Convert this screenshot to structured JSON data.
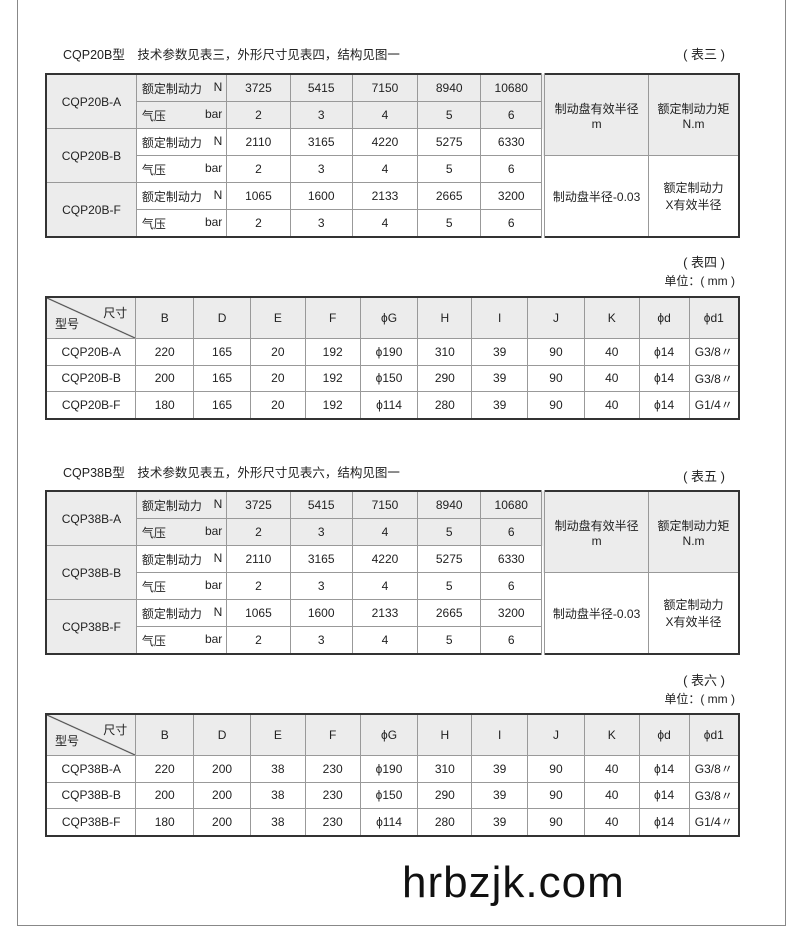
{
  "sections": [
    {
      "title": "CQP20B型　技术参数见表三，外形尺寸见表四，结构见图一",
      "spec": {
        "tag": "( 表三 )",
        "models": [
          "CQP20B-A",
          "CQP20B-B",
          "CQP20B-F"
        ],
        "force_label": "额定制动力",
        "force_unit": "N",
        "pressure_label": "气压",
        "pressure_unit": "bar",
        "forces": [
          [
            "3725",
            "5415",
            "7150",
            "8940",
            "10680"
          ],
          [
            "2110",
            "3165",
            "4220",
            "5275",
            "6330"
          ],
          [
            "1065",
            "1600",
            "2133",
            "2665",
            "3200"
          ]
        ],
        "pressures": [
          "2",
          "3",
          "4",
          "5",
          "6"
        ],
        "radius_header": "制动盘有效半径",
        "radius_unit": "m",
        "torque_header": "额定制动力矩",
        "torque_unit": "N.m",
        "radius_value": "制动盘半径-0.03",
        "torque_value_1": "额定制动力",
        "torque_value_2": "X有效半径"
      },
      "dim": {
        "tag": "( 表四 )",
        "unit": "单位：( mm )",
        "corner_top": "尺寸",
        "corner_bottom": "型号",
        "headers": [
          "B",
          "D",
          "E",
          "F",
          "ϕG",
          "H",
          "I",
          "J",
          "K",
          "ϕd",
          "ϕd1"
        ],
        "rows": [
          [
            "CQP20B-A",
            "220",
            "165",
            "20",
            "192",
            "ϕ190",
            "310",
            "39",
            "90",
            "40",
            "ϕ14",
            "G3/8〃"
          ],
          [
            "CQP20B-B",
            "200",
            "165",
            "20",
            "192",
            "ϕ150",
            "290",
            "39",
            "90",
            "40",
            "ϕ14",
            "G3/8〃"
          ],
          [
            "CQP20B-F",
            "180",
            "165",
            "20",
            "192",
            "ϕ114",
            "280",
            "39",
            "90",
            "40",
            "ϕ14",
            "G1/4〃"
          ]
        ]
      }
    },
    {
      "title": "CQP38B型　技术参数见表五，外形尺寸见表六，结构见图一",
      "spec": {
        "tag": "( 表五 )",
        "models": [
          "CQP38B-A",
          "CQP38B-B",
          "CQP38B-F"
        ],
        "force_label": "额定制动力",
        "force_unit": "N",
        "pressure_label": "气压",
        "pressure_unit": "bar",
        "forces": [
          [
            "3725",
            "5415",
            "7150",
            "8940",
            "10680"
          ],
          [
            "2110",
            "3165",
            "4220",
            "5275",
            "6330"
          ],
          [
            "1065",
            "1600",
            "2133",
            "2665",
            "3200"
          ]
        ],
        "pressures": [
          "2",
          "3",
          "4",
          "5",
          "6"
        ],
        "radius_header": "制动盘有效半径",
        "radius_unit": "m",
        "torque_header": "额定制动力矩",
        "torque_unit": "N.m",
        "radius_value": "制动盘半径-0.03",
        "torque_value_1": "额定制动力",
        "torque_value_2": "X有效半径"
      },
      "dim": {
        "tag": "( 表六 )",
        "unit": "单位：( mm )",
        "corner_top": "尺寸",
        "corner_bottom": "型号",
        "headers": [
          "B",
          "D",
          "E",
          "F",
          "ϕG",
          "H",
          "I",
          "J",
          "K",
          "ϕd",
          "ϕd1"
        ],
        "rows": [
          [
            "CQP38B-A",
            "220",
            "200",
            "38",
            "230",
            "ϕ190",
            "310",
            "39",
            "90",
            "40",
            "ϕ14",
            "G3/8〃"
          ],
          [
            "CQP38B-B",
            "200",
            "200",
            "38",
            "230",
            "ϕ150",
            "290",
            "39",
            "90",
            "40",
            "ϕ14",
            "G3/8〃"
          ],
          [
            "CQP38B-F",
            "180",
            "200",
            "38",
            "230",
            "ϕ114",
            "280",
            "39",
            "90",
            "40",
            "ϕ14",
            "G1/4〃"
          ]
        ]
      }
    }
  ],
  "watermark": "hrbzjk.com"
}
